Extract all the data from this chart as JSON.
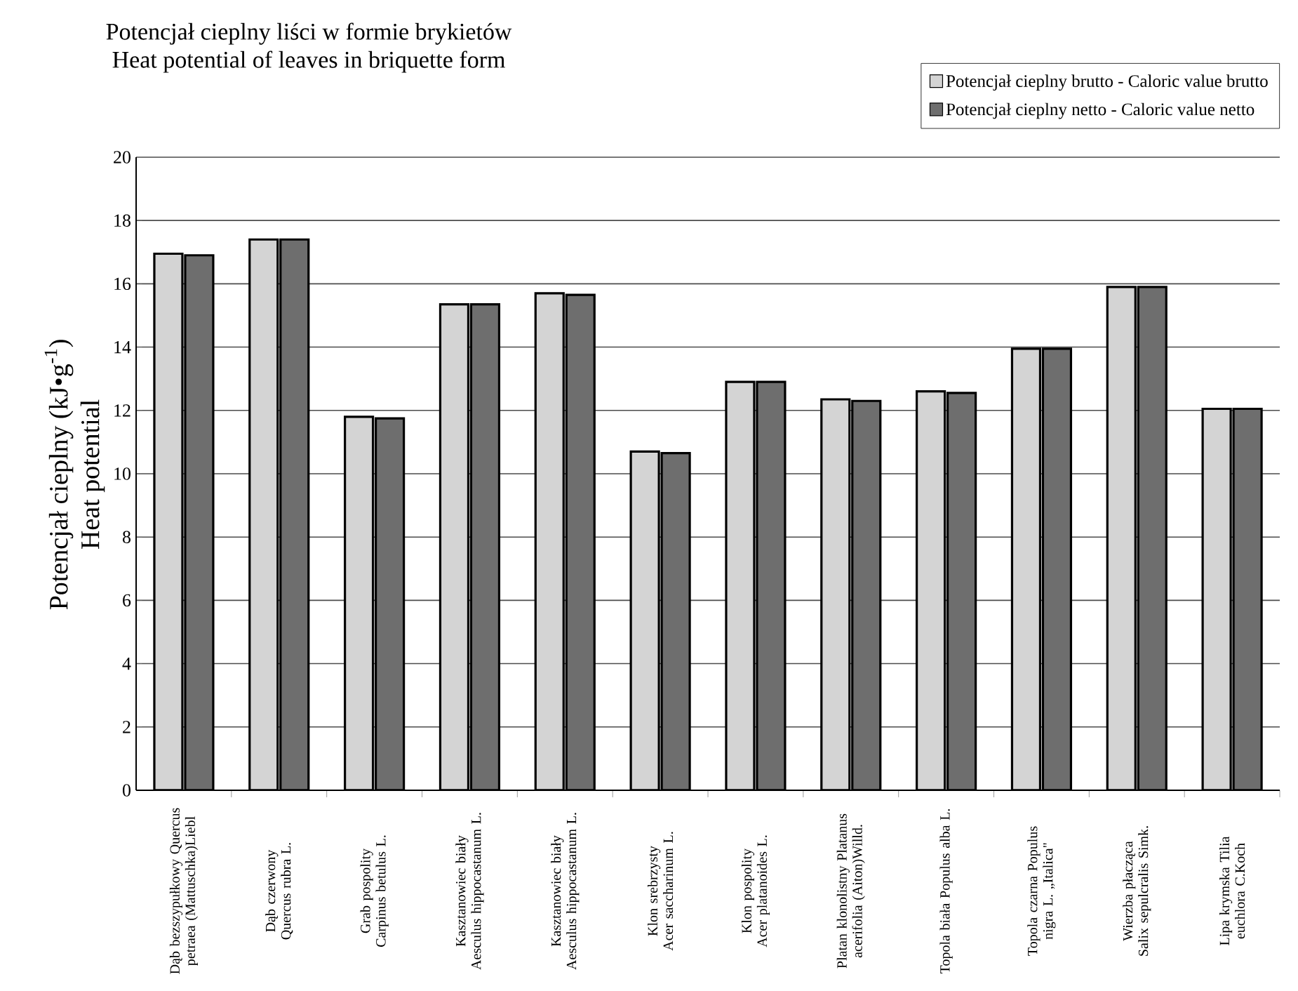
{
  "chart_data": {
    "type": "bar",
    "title": "Potencjał cieplny liści w formie brykietów",
    "subtitle": "Heat potential of leaves in briquette form",
    "ylabel": "Potencjał cieplny (kJ•g$^{-1}$)",
    "annotations": [
      "Heat potential"
    ],
    "categories": [
      "Dąb bezszypułkowy Quercus petraea (Mattuschka)Liebl",
      "Dąb czerwony Quercus rubra L.",
      "Grab pospolity Carpinus betulus L.",
      "Kasztanowiec biały Aesculus hippocastanum L.",
      "Kasztanowiec biały Aesculus hippocastanum L.",
      "Klon srebrzysty Acer saccharinum L.",
      "Klon pospolity Acer platanoides L.",
      "Platan klonolistny Platanus acerifolia (Aiton)Willd.",
      "Topola biała Populus alba L.",
      "Topola czarna Populus nigra L. „Italica\"",
      "Wierzba płacząca Salix sepulcralis Simk.",
      "Lipa krymska Tilia euchlora C.Koch"
    ],
    "series": [
      {
        "name": "Potencjał cieplny brutto - Caloric value brutto",
        "color": "#d4d4d4",
        "values": [
          16.95,
          17.4,
          11.8,
          15.35,
          15.7,
          10.7,
          12.9,
          12.35,
          12.6,
          13.95,
          15.9,
          12.05
        ]
      },
      {
        "name": "Potencjał cieplny netto - Caloric value netto",
        "color": "#6e6e6e",
        "values": [
          16.9,
          17.4,
          11.75,
          15.35,
          15.65,
          10.65,
          12.9,
          12.3,
          12.55,
          13.95,
          15.9,
          12.05
        ]
      }
    ],
    "ylim": [
      0,
      20
    ],
    "yticks": [
      0,
      2,
      4,
      6,
      8,
      10,
      12,
      14,
      16,
      18,
      20
    ],
    "grid": "y",
    "legend": "top right"
  }
}
